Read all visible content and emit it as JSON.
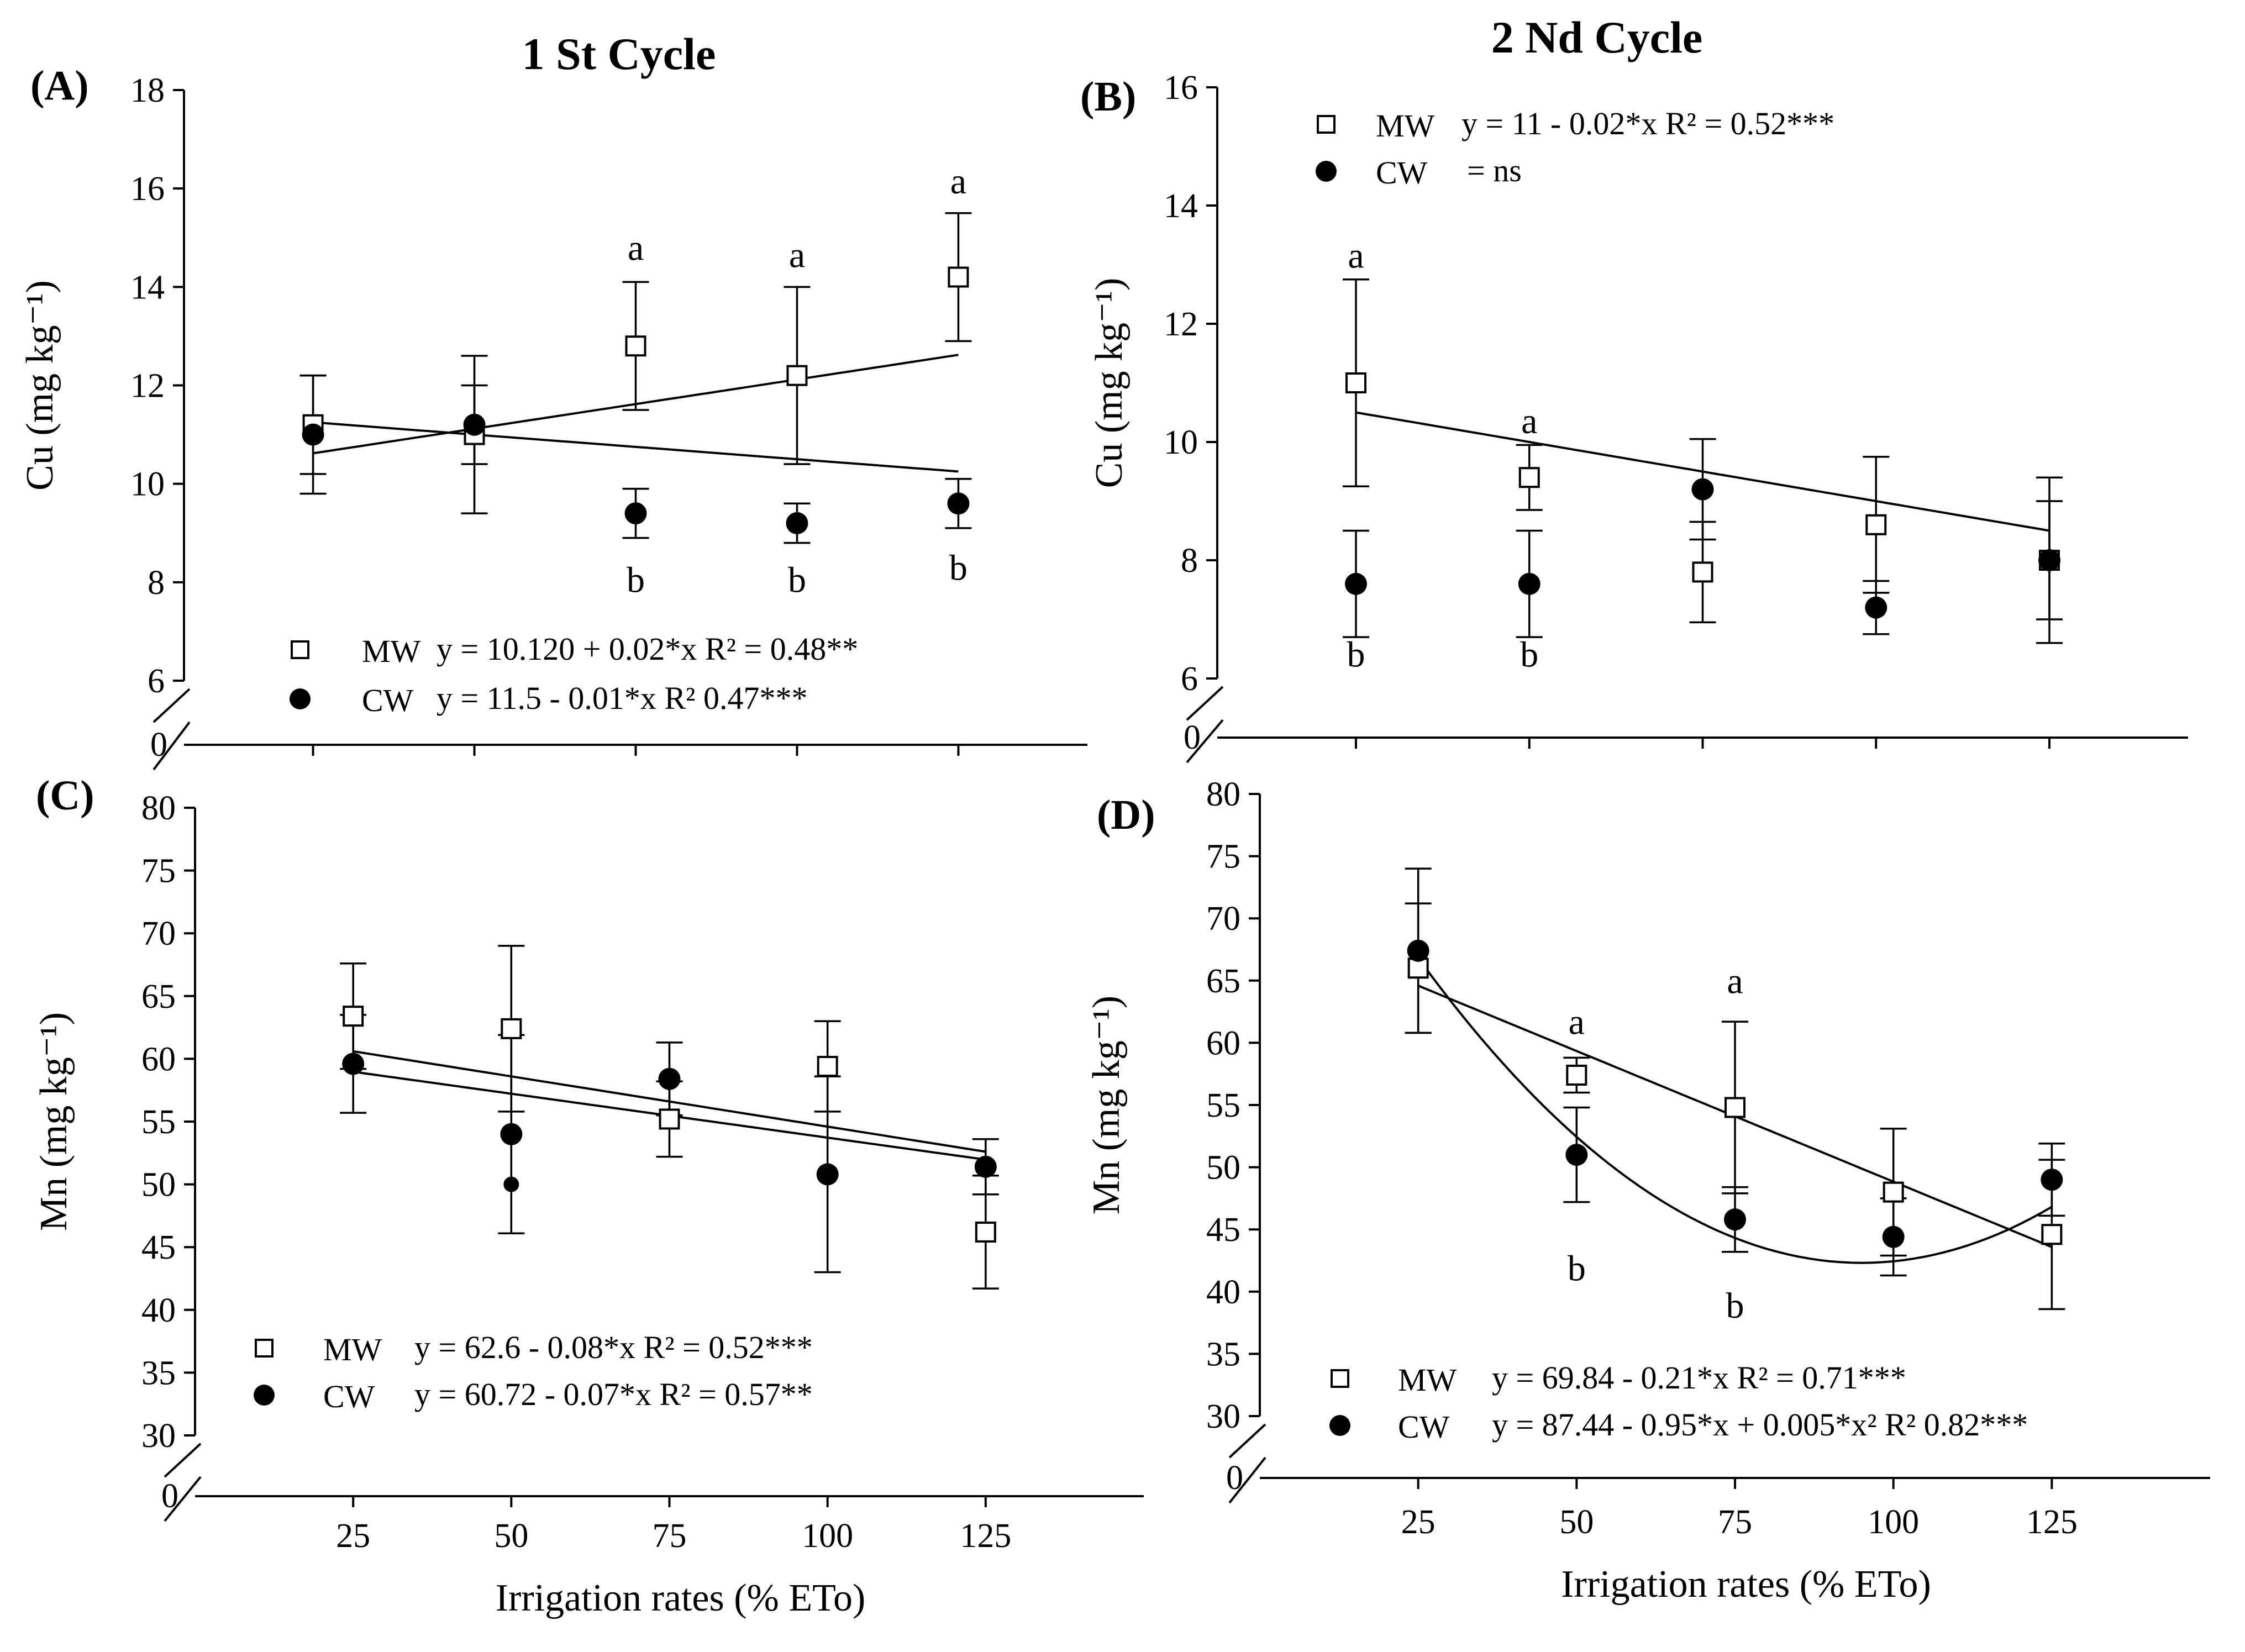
{
  "figure": {
    "titles": [
      "1 St Cycle",
      "2 Nd Cycle"
    ],
    "x_label": "Irrigation rates (% ETo)",
    "colors": {
      "ink": "#000000",
      "background": "#ffffff"
    }
  },
  "chart_data": [
    {
      "type": "scatter",
      "panel": "(A)",
      "title": "1 St Cycle",
      "ylabel": "Cu (mg kg⁻¹)",
      "xlabel": "",
      "x_ticks": [],
      "y_ticks": [
        6,
        8,
        10,
        12,
        14,
        16,
        18
      ],
      "y_break_label": "0",
      "ylim": [
        6,
        18
      ],
      "xlim": [
        5,
        145
      ],
      "series": [
        {
          "name": "MW",
          "marker": "open-square",
          "x": [
            25,
            50,
            75,
            100,
            125
          ],
          "y": [
            11.2,
            11.0,
            12.8,
            12.2,
            14.2
          ],
          "err": [
            1.0,
            1.6,
            1.3,
            1.8,
            1.3
          ],
          "fit": {
            "kind": "linear",
            "a": 10.12,
            "b": 0.02,
            "x0": 25,
            "x1": 125
          },
          "legend": "MW",
          "equation": "y = 10.120 + 0.02*x R² = 0.48**"
        },
        {
          "name": "CW",
          "marker": "filled-circle",
          "x": [
            25,
            50,
            75,
            100,
            125
          ],
          "y": [
            11.0,
            11.2,
            9.4,
            9.2,
            9.6
          ],
          "err": [
            1.2,
            0.8,
            0.5,
            0.4,
            0.5
          ],
          "fit": {
            "kind": "linear",
            "a": 11.5,
            "b": -0.01,
            "x0": 25,
            "x1": 125
          },
          "legend": "CW",
          "equation": "y = 11.5 - 0.01*x R² 0.47***"
        }
      ],
      "letters": [
        {
          "x": 75,
          "y": 14.55,
          "text": "a"
        },
        {
          "x": 100,
          "y": 14.4,
          "text": "a"
        },
        {
          "x": 125,
          "y": 15.9,
          "text": "a"
        },
        {
          "x": 75,
          "y": 7.8,
          "text": "b"
        },
        {
          "x": 100,
          "y": 7.8,
          "text": "b"
        },
        {
          "x": 125,
          "y": 8.05,
          "text": "b"
        }
      ]
    },
    {
      "type": "scatter",
      "panel": "(B)",
      "title": "2 Nd Cycle",
      "ylabel": "Cu (mg kg⁻¹)",
      "xlabel": "",
      "x_ticks": [],
      "y_ticks": [
        6,
        8,
        10,
        12,
        14,
        16
      ],
      "y_break_label": "0",
      "ylim": [
        6,
        16
      ],
      "xlim": [
        5,
        145
      ],
      "series": [
        {
          "name": "MW",
          "marker": "open-square",
          "x": [
            25,
            50,
            75,
            100,
            125
          ],
          "y": [
            11.0,
            9.4,
            7.8,
            8.6,
            8.0
          ],
          "err": [
            1.75,
            0.55,
            0.85,
            1.15,
            1.4
          ],
          "fit": {
            "kind": "linear",
            "a": 11,
            "b": -0.02,
            "x0": 25,
            "x1": 125
          },
          "legend": "MW",
          "equation": "y = 11 - 0.02*x R² = 0.52***"
        },
        {
          "name": "CW",
          "marker": "filled-circle",
          "x": [
            25,
            50,
            75,
            100,
            125
          ],
          "y": [
            7.6,
            7.6,
            9.2,
            7.2,
            8.0
          ],
          "err": [
            0.9,
            0.9,
            0.85,
            0.45,
            1.0
          ],
          "fit": null,
          "legend": "CW",
          "equation": "= ns"
        }
      ],
      "letters": [
        {
          "x": 25,
          "y": 12.95,
          "text": "a"
        },
        {
          "x": 50,
          "y": 10.15,
          "text": "a"
        },
        {
          "x": 25,
          "y": 6.2,
          "text": "b"
        },
        {
          "x": 50,
          "y": 6.2,
          "text": "b"
        }
      ]
    },
    {
      "type": "scatter",
      "panel": "(C)",
      "title": "",
      "ylabel": "Mn (mg kg⁻¹)",
      "xlabel": "Irrigation rates (% ETo)",
      "x_ticks": [
        25,
        50,
        75,
        100,
        125
      ],
      "y_ticks": [
        30,
        35,
        40,
        45,
        50,
        55,
        60,
        65,
        70,
        75,
        80
      ],
      "y_break_label": "0",
      "ylim": [
        30,
        80
      ],
      "xlim": [
        0,
        150
      ],
      "series": [
        {
          "name": "MW",
          "marker": "open-square",
          "x": [
            25,
            50,
            75,
            100,
            125
          ],
          "y": [
            63.4,
            62.4,
            55.2,
            59.4,
            46.2
          ],
          "err": [
            4.2,
            6.6,
            3.0,
            3.6,
            4.5
          ],
          "fit": {
            "kind": "linear",
            "a": 62.6,
            "b": -0.08,
            "x0": 25,
            "x1": 125
          },
          "legend": "MW",
          "equation": "y = 62.6 - 0.08*x R² = 0.52***"
        },
        {
          "name": "CW",
          "marker": "filled-circle",
          "x": [
            25,
            50,
            75,
            100,
            125
          ],
          "y": [
            59.6,
            54.0,
            58.4,
            50.8,
            51.4
          ],
          "err": [
            3.9,
            7.9,
            2.9,
            7.8,
            2.2
          ],
          "fit": {
            "kind": "linear",
            "a": 60.72,
            "b": -0.07,
            "x0": 25,
            "x1": 125
          },
          "legend": "CW",
          "equation": "y = 60.72 - 0.07*x R² = 0.57**"
        }
      ],
      "extra_points": [
        {
          "x": 50,
          "y": 50.0
        }
      ],
      "letters": []
    },
    {
      "type": "scatter",
      "panel": "(D)",
      "title": "",
      "ylabel": "Mn (mg kg⁻¹)",
      "xlabel": "Irrigation rates (% ETo)",
      "x_ticks": [
        25,
        50,
        75,
        100,
        125
      ],
      "y_ticks": [
        30,
        35,
        40,
        45,
        50,
        55,
        60,
        65,
        70,
        75,
        80
      ],
      "y_break_label": "0",
      "ylim": [
        30,
        80
      ],
      "xlim": [
        0,
        150
      ],
      "series": [
        {
          "name": "MW",
          "marker": "open-square",
          "x": [
            25,
            50,
            75,
            100,
            125
          ],
          "y": [
            66.0,
            57.4,
            54.8,
            48.0,
            44.6
          ],
          "err": [
            5.2,
            1.4,
            6.9,
            5.1,
            6.0
          ],
          "fit": {
            "kind": "linear",
            "a": 69.84,
            "b": -0.21,
            "x0": 25,
            "x1": 125
          },
          "legend": "MW",
          "equation": "y = 69.84 - 0.21*x R² = 0.71***"
        },
        {
          "name": "CW",
          "marker": "filled-circle",
          "x": [
            25,
            50,
            75,
            100,
            125
          ],
          "y": [
            67.4,
            51.0,
            45.8,
            44.4,
            49.0
          ],
          "err": [
            6.6,
            3.8,
            2.6,
            3.1,
            2.9
          ],
          "fit": {
            "kind": "quadratic",
            "a": 87.44,
            "b": -0.95,
            "c": 0.005,
            "x0": 25,
            "x1": 125
          },
          "legend": "CW",
          "equation": "y = 87.44 - 0.95*x + 0.005*x² R² 0.82***"
        }
      ],
      "letters": [
        {
          "x": 50,
          "y": 60.7,
          "text": "a"
        },
        {
          "x": 75,
          "y": 64.0,
          "text": "a"
        },
        {
          "x": 50,
          "y": 40.9,
          "text": "b"
        },
        {
          "x": 75,
          "y": 37.9,
          "text": "b"
        }
      ]
    }
  ]
}
